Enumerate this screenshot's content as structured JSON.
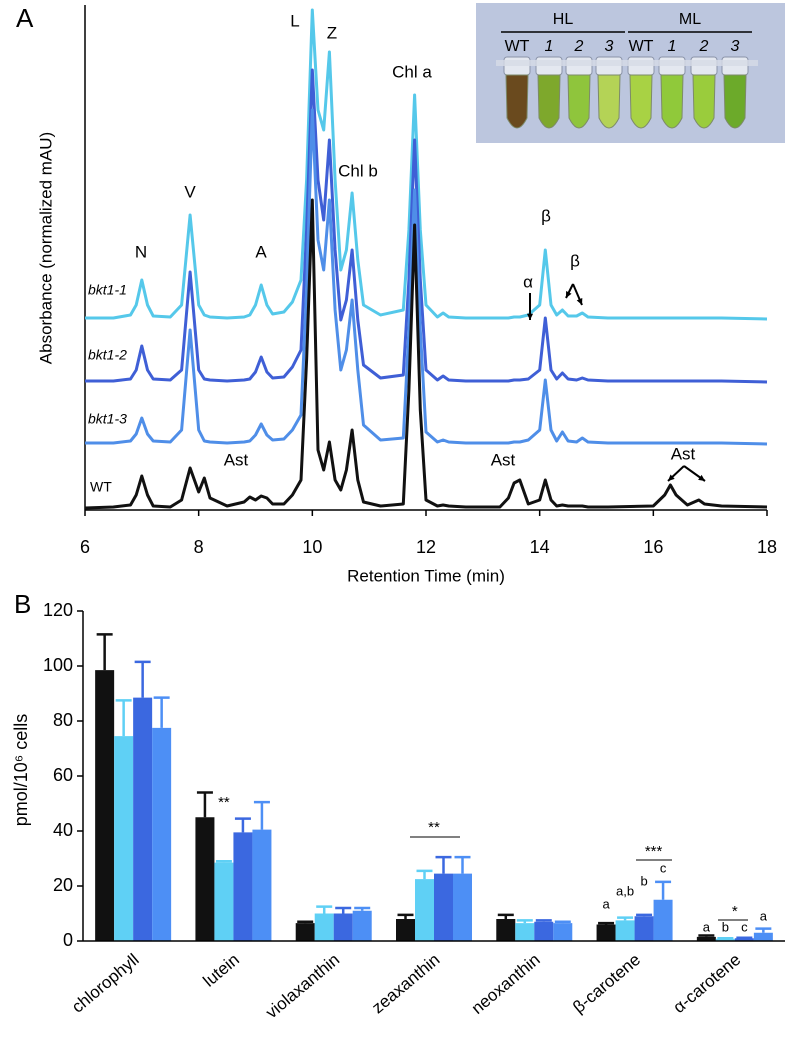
{
  "panel_labels": [
    "A",
    "B"
  ],
  "inset": {
    "groups": [
      "HL",
      "ML"
    ],
    "lanes": [
      "WT",
      "1",
      "2",
      "3",
      "WT",
      "1",
      "2",
      "3"
    ]
  },
  "chart_data": [
    {
      "type": "line",
      "xlabel": "Retention Time (min)",
      "ylabel": "Absorbance (normalized mAU)",
      "xlim": [
        6,
        18
      ],
      "xticks": [
        6,
        8,
        10,
        12,
        14,
        16,
        18
      ],
      "ylim": [
        0,
        505
      ],
      "x": [
        6.0,
        6.5,
        6.8,
        6.9,
        7.0,
        7.1,
        7.2,
        7.5,
        7.7,
        7.85,
        8.0,
        8.1,
        8.2,
        8.5,
        8.8,
        8.9,
        9.0,
        9.1,
        9.2,
        9.3,
        9.5,
        9.65,
        9.8,
        9.9,
        10.0,
        10.1,
        10.2,
        10.3,
        10.4,
        10.5,
        10.6,
        10.7,
        10.8,
        10.9,
        11.2,
        11.6,
        11.7,
        11.8,
        11.9,
        12.0,
        12.2,
        12.3,
        12.4,
        12.7,
        13.3,
        13.45,
        13.55,
        13.65,
        13.8,
        14.0,
        14.1,
        14.2,
        14.3,
        14.4,
        14.5,
        14.65,
        14.75,
        14.85,
        15.2,
        16.0,
        16.2,
        16.3,
        16.4,
        16.6,
        16.8,
        16.9,
        17.2,
        18.0
      ],
      "series": [
        {
          "name": "bkt1-1",
          "color": "#55c8ea",
          "values": [
            192,
            192,
            195,
            205,
            230,
            205,
            194,
            193,
            205,
            295,
            205,
            195,
            193,
            192,
            193,
            195,
            205,
            225,
            205,
            196,
            198,
            208,
            230,
            330,
            500,
            400,
            380,
            458,
            330,
            240,
            260,
            317,
            250,
            205,
            195,
            200,
            280,
            415,
            280,
            205,
            193,
            197,
            193,
            192,
            192,
            192,
            193,
            193,
            195,
            205,
            260,
            205,
            195,
            200,
            194,
            194,
            197,
            193,
            192,
            192,
            192,
            192,
            192,
            192,
            192,
            192,
            192,
            191
          ]
        },
        {
          "name": "bkt1-2",
          "color": "#3f5fd6",
          "values": [
            129,
            129,
            131,
            140,
            164,
            140,
            131,
            130,
            140,
            238,
            140,
            131,
            130,
            129,
            130,
            131,
            138,
            153,
            138,
            132,
            133,
            143,
            160,
            280,
            440,
            330,
            290,
            370,
            260,
            190,
            210,
            260,
            190,
            145,
            132,
            135,
            230,
            370,
            230,
            140,
            130,
            134,
            130,
            129,
            129,
            129,
            130,
            130,
            131,
            140,
            192,
            140,
            131,
            137,
            131,
            130,
            132,
            130,
            129,
            129,
            129,
            129,
            129,
            129,
            129,
            129,
            129,
            128
          ]
        },
        {
          "name": "bkt1-3",
          "color": "#4f8ee8",
          "values": [
            67,
            67,
            69,
            76,
            92,
            76,
            69,
            68,
            80,
            180,
            80,
            69,
            68,
            67,
            68,
            69,
            75,
            86,
            75,
            70,
            71,
            80,
            95,
            220,
            400,
            270,
            240,
            310,
            200,
            140,
            160,
            210,
            140,
            85,
            70,
            72,
            180,
            320,
            180,
            78,
            68,
            70,
            68,
            67,
            67,
            67,
            68,
            68,
            70,
            80,
            130,
            80,
            69,
            78,
            69,
            68,
            72,
            68,
            67,
            67,
            67,
            67,
            67,
            67,
            67,
            67,
            67,
            66
          ]
        },
        {
          "name": "WT",
          "color": "#111111",
          "values": [
            2,
            3,
            5,
            15,
            34,
            15,
            4,
            3,
            10,
            42,
            18,
            32,
            12,
            4,
            8,
            13,
            10,
            14,
            12,
            6,
            6,
            15,
            30,
            150,
            310,
            60,
            40,
            68,
            30,
            20,
            40,
            80,
            30,
            8,
            4,
            6,
            120,
            285,
            100,
            10,
            4,
            5,
            4,
            3,
            3,
            12,
            27,
            30,
            6,
            10,
            30,
            10,
            4,
            5,
            4,
            4,
            4,
            3,
            3,
            4,
            15,
            25,
            15,
            5,
            10,
            6,
            4,
            3
          ]
        }
      ],
      "annotations": [
        "N",
        "V",
        "A",
        "L",
        "Z",
        "Chl b",
        "Chl a",
        "β",
        "α",
        "β",
        "Ast",
        "Ast",
        "Ast"
      ]
    },
    {
      "type": "bar",
      "ylabel": "pmol/10⁶ cells",
      "categories": [
        "chlorophyll",
        "lutein",
        "violaxanthin",
        "zeaxanthin",
        "neoxanthin",
        "β-carotene",
        "α-carotene"
      ],
      "ylim": [
        0,
        120
      ],
      "yticks": [
        0,
        20,
        40,
        60,
        80,
        100,
        120
      ],
      "series": [
        {
          "color": "#111111",
          "values": [
            98.5,
            45,
            6.5,
            8,
            8,
            6,
            1.5
          ],
          "errors": [
            13,
            9,
            0.5,
            1.5,
            1.5,
            0.5,
            0.5
          ]
        },
        {
          "color": "#5fd0f5",
          "values": [
            74.5,
            28.5,
            10,
            22.5,
            6.5,
            7.5,
            0.8
          ],
          "errors": [
            13,
            0.5,
            2.5,
            3,
            1,
            1,
            0.2
          ]
        },
        {
          "color": "#3b68e0",
          "values": [
            88.5,
            39.5,
            10,
            24.5,
            7,
            9,
            1
          ],
          "errors": [
            13,
            5,
            2,
            6,
            0.5,
            0.5,
            0.2
          ]
        },
        {
          "color": "#4d8ff5",
          "values": [
            77.5,
            40.5,
            11,
            24.5,
            6.5,
            15,
            3
          ],
          "errors": [
            11,
            10,
            1,
            6,
            0.5,
            6.5,
            1.5
          ]
        }
      ],
      "annotations": [
        "**",
        "**",
        "a",
        "a,b",
        "b",
        "c",
        "***",
        "a",
        "b",
        "c",
        "a",
        "*"
      ]
    }
  ]
}
